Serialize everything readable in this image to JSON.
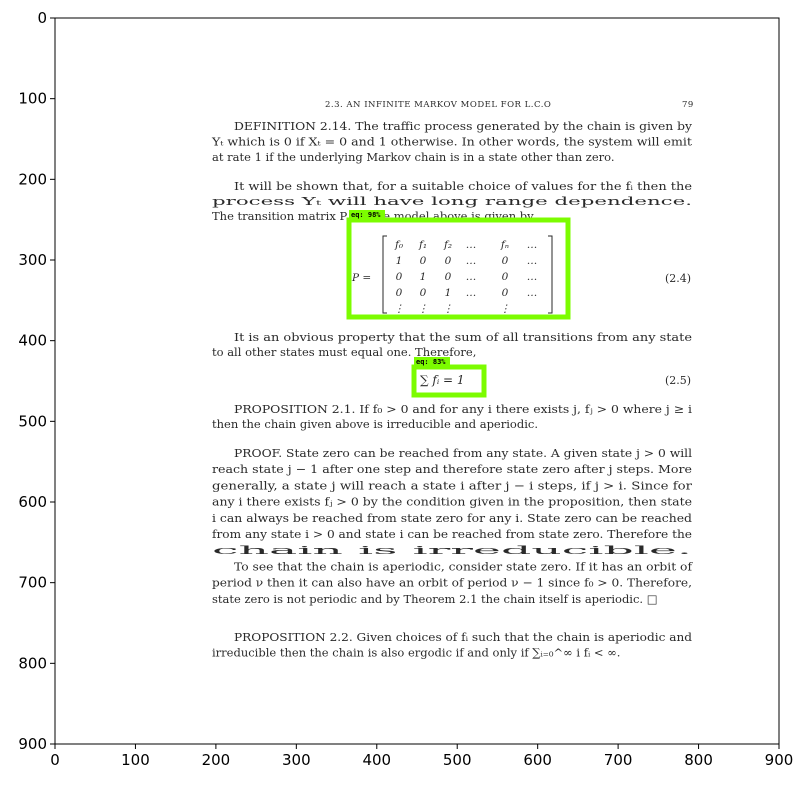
{
  "axes": {
    "x_ticks": [
      "0",
      "100",
      "200",
      "300",
      "400",
      "500",
      "600",
      "700",
      "800",
      "900"
    ],
    "y_ticks": [
      "0",
      "100",
      "200",
      "300",
      "400",
      "500",
      "600",
      "700",
      "800",
      "900"
    ]
  },
  "document": {
    "header": {
      "section": "2.3. AN INFINITE MARKOV MODEL FOR L.C.O",
      "page_number": "79"
    },
    "def_lines": [
      "DEFINITION 2.14. The traffic process generated by the chain is given by",
      "Yₜ which is 0 if Xₜ = 0 and 1 otherwise. In other words, the system will emit",
      "at rate 1 if the underlying Markov chain is in a state other than zero."
    ],
    "para2_lines": [
      "It will be shown that, for a suitable choice of values for the fᵢ then the",
      "process Yₜ will have long range dependence.",
      "The transition matrix P for the model above is given by"
    ],
    "matrix": {
      "lhs": "P =",
      "rows": [
        [
          "f₀",
          "f₁",
          "f₂",
          "…",
          "fₙ",
          "…"
        ],
        [
          "1",
          "0",
          "0",
          "…",
          "0",
          "…"
        ],
        [
          "0",
          "1",
          "0",
          "…",
          "0",
          "…"
        ],
        [
          "0",
          "0",
          "1",
          "…",
          "0",
          "…"
        ],
        [
          "⋮",
          "⋮",
          "⋮",
          "",
          "⋮",
          ""
        ]
      ],
      "eq_number": "(2.4)"
    },
    "para3_lines": [
      "It is an obvious property that the sum of all transitions from any state",
      "to all other states must equal one. Therefore,"
    ],
    "sum_eq": {
      "text": "∑ fᵢ = 1",
      "eq_number": "(2.5)"
    },
    "prop1_lines": [
      "PROPOSITION 2.1. If f₀ > 0 and for any i there exists j, fⱼ > 0 where j ≥ i",
      "then the chain given above is irreducible and aperiodic."
    ],
    "proof_lines": [
      "PROOF. State zero can be reached from any state. A given state j > 0 will",
      "reach state j − 1 after one step and therefore state zero after j steps. More",
      "generally, a state j will reach a state i after j − i steps, if j > i. Since for",
      "any i there exists fⱼ > 0 by the condition given in the proposition, then state",
      "i can always be reached from state zero for any i. State zero can be reached",
      "from any state i > 0 and state i can be reached from state zero. Therefore the",
      "chain is irreducible.",
      "To see that the chain is aperiodic, consider state zero. If it has an orbit of",
      "period ν then it can also have an orbit of period ν − 1 since f₀ > 0. Therefore,",
      "state zero is not periodic and by Theorem 2.1 the chain itself is aperiodic.   □"
    ],
    "prop2_lines": [
      "PROPOSITION 2.2. Given choices of fᵢ such that the chain is aperiodic and",
      "irreducible then the chain is also ergodic if and only if ∑ᵢ₌₀^∞ i fᵢ < ∞."
    ]
  },
  "detections": [
    {
      "label": "eq: 98%",
      "class": "equation",
      "confidence": 0.98
    },
    {
      "label": "eq: 83%",
      "class": "equation",
      "confidence": 0.83
    }
  ],
  "colors": {
    "box": "#7cfc00",
    "text": "#2a2a2a",
    "axis": "#000000"
  }
}
